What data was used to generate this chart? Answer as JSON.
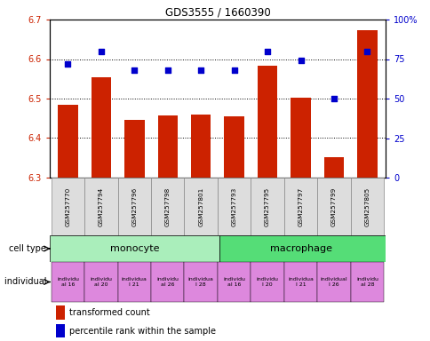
{
  "title": "GDS3555 / 1660390",
  "samples": [
    "GSM257770",
    "GSM257794",
    "GSM257796",
    "GSM257798",
    "GSM257801",
    "GSM257793",
    "GSM257795",
    "GSM257797",
    "GSM257799",
    "GSM257805"
  ],
  "bar_values": [
    6.485,
    6.555,
    6.445,
    6.458,
    6.46,
    6.455,
    6.583,
    6.503,
    6.352,
    6.672
  ],
  "dot_values": [
    72,
    80,
    68,
    68,
    68,
    68,
    80,
    74,
    50,
    80
  ],
  "ylim_left": [
    6.3,
    6.7
  ],
  "ylim_right": [
    0,
    100
  ],
  "yticks_left": [
    6.3,
    6.4,
    6.5,
    6.6,
    6.7
  ],
  "yticks_right": [
    0,
    25,
    50,
    75,
    100
  ],
  "bar_color": "#cc2200",
  "dot_color": "#0000cc",
  "monocyte_color": "#aaeebb",
  "macrophage_color": "#55dd77",
  "indiv_color": "#dd88dd",
  "sample_box_color": "#dddddd",
  "legend_bar": "transformed count",
  "legend_dot": "percentile rank within the sample"
}
